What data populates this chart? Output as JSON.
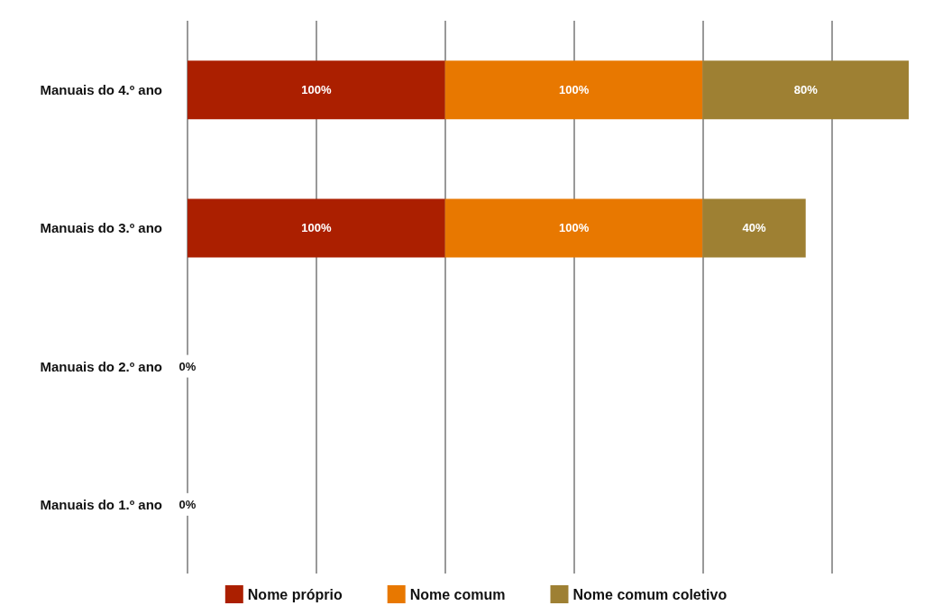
{
  "chart_data": {
    "type": "bar",
    "orientation": "horizontal",
    "stacked": true,
    "categories": [
      "Manuais do 4.º ano",
      "Manuais do 3.º ano",
      "Manuais do 2.º ano",
      "Manuais do 1.º ano"
    ],
    "series": [
      {
        "name": "Nome próprio",
        "color": "#ab1f00",
        "values": [
          100,
          100,
          0,
          0
        ],
        "value_labels": [
          "100%",
          "100%",
          "0%",
          "0%"
        ]
      },
      {
        "name": "Nome comum",
        "color": "#e87800",
        "values": [
          100,
          100,
          0,
          0
        ],
        "value_labels": [
          "100%",
          "100%",
          null,
          null
        ]
      },
      {
        "name": "Nome comum coletivo",
        "color": "#9e8033",
        "values": [
          80,
          40,
          0,
          0
        ],
        "value_labels": [
          "80%",
          "40%",
          null,
          null
        ]
      }
    ],
    "xticks": [
      {
        "value": 0,
        "label": null
      },
      {
        "value": 50,
        "label": null
      },
      {
        "value": 100,
        "label": null
      },
      {
        "value": 150,
        "label": null
      },
      {
        "value": 200,
        "label": null
      },
      {
        "value": 250,
        "label": null
      }
    ],
    "grid": "x",
    "legend": "bottom",
    "tick_labels": "y"
  }
}
